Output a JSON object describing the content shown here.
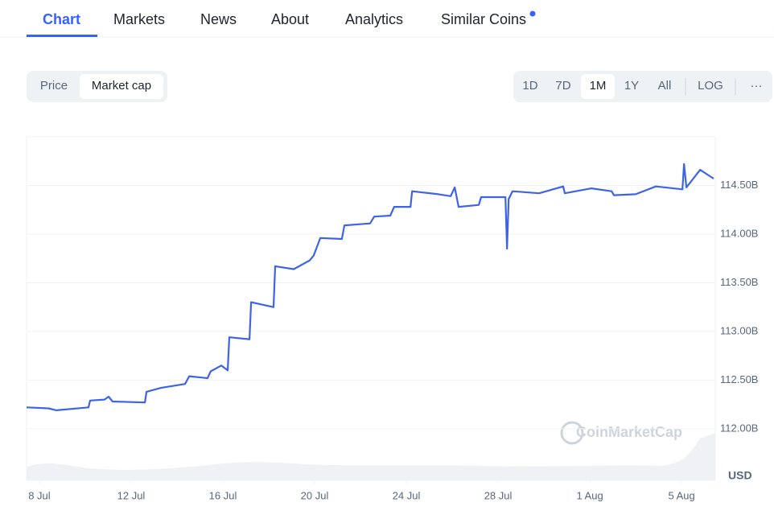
{
  "tabs": [
    "Chart",
    "Markets",
    "News",
    "About",
    "Analytics",
    "Similar Coins"
  ],
  "toggle": [
    "Price",
    "Market cap"
  ],
  "ranges": [
    "1D",
    "7D",
    "1M",
    "1Y",
    "All",
    "LOG"
  ],
  "more": "···",
  "watermark": "CoinMarketCap",
  "chart_data": {
    "type": "line",
    "unit": "USD",
    "color": "#3f63e6",
    "grid": true,
    "x": [
      7.44,
      8.39,
      8.74,
      10.14,
      10.21,
      10.84,
      11.02,
      11.19,
      12.6,
      12.67,
      13.3,
      14.35,
      14.53,
      15.33,
      15.47,
      15.93,
      16.21,
      16.28,
      17.16,
      17.23,
      18.21,
      18.28,
      19.09,
      19.79,
      19.96,
      20.25,
      21.19,
      21.3,
      22.42,
      22.6,
      23.3,
      23.47,
      24.18,
      24.25,
      25.4,
      25.93,
      26.11,
      26.28,
      27.16,
      27.26,
      28.32,
      28.39,
      28.46,
      28.63,
      29.79,
      30.84,
      30.91,
      32.07,
      32.95,
      33.05,
      34.0,
      34.88,
      36.04,
      36.11,
      36.21,
      36.81,
      37.4
    ],
    "values": [
      112.22,
      112.21,
      112.19,
      112.22,
      112.29,
      112.3,
      112.33,
      112.28,
      112.27,
      112.38,
      112.42,
      112.46,
      112.54,
      112.52,
      112.59,
      112.65,
      112.6,
      112.94,
      112.92,
      113.3,
      113.25,
      113.67,
      113.64,
      113.73,
      113.78,
      113.96,
      113.95,
      114.09,
      114.11,
      114.18,
      114.19,
      114.28,
      114.28,
      114.44,
      114.41,
      114.39,
      114.48,
      114.28,
      114.3,
      114.38,
      114.38,
      113.85,
      114.36,
      114.44,
      114.42,
      114.49,
      114.42,
      114.47,
      114.44,
      114.4,
      114.41,
      114.49,
      114.46,
      114.72,
      114.48,
      114.66,
      114.57
    ],
    "xlim": [
      7.44,
      37.47
    ],
    "xticks": [
      {
        "value": 8,
        "label": "8 Jul"
      },
      {
        "value": 12,
        "label": "12 Jul"
      },
      {
        "value": 16,
        "label": "16 Jul"
      },
      {
        "value": 20,
        "label": "20 Jul"
      },
      {
        "value": 24,
        "label": "24 Jul"
      },
      {
        "value": 28,
        "label": "28 Jul"
      },
      {
        "value": 32,
        "label": "1 Aug"
      },
      {
        "value": 36,
        "label": "5 Aug"
      }
    ],
    "ylim": [
      111.47,
      115.0
    ],
    "yticks": [
      {
        "value": 112,
        "label": "112.00B"
      },
      {
        "value": 112.5,
        "label": "112.50B"
      },
      {
        "value": 113,
        "label": "113.00B"
      },
      {
        "value": 113.5,
        "label": "113.50B"
      },
      {
        "value": 114,
        "label": "114.00B"
      },
      {
        "value": 114.5,
        "label": "114.50B"
      }
    ]
  }
}
